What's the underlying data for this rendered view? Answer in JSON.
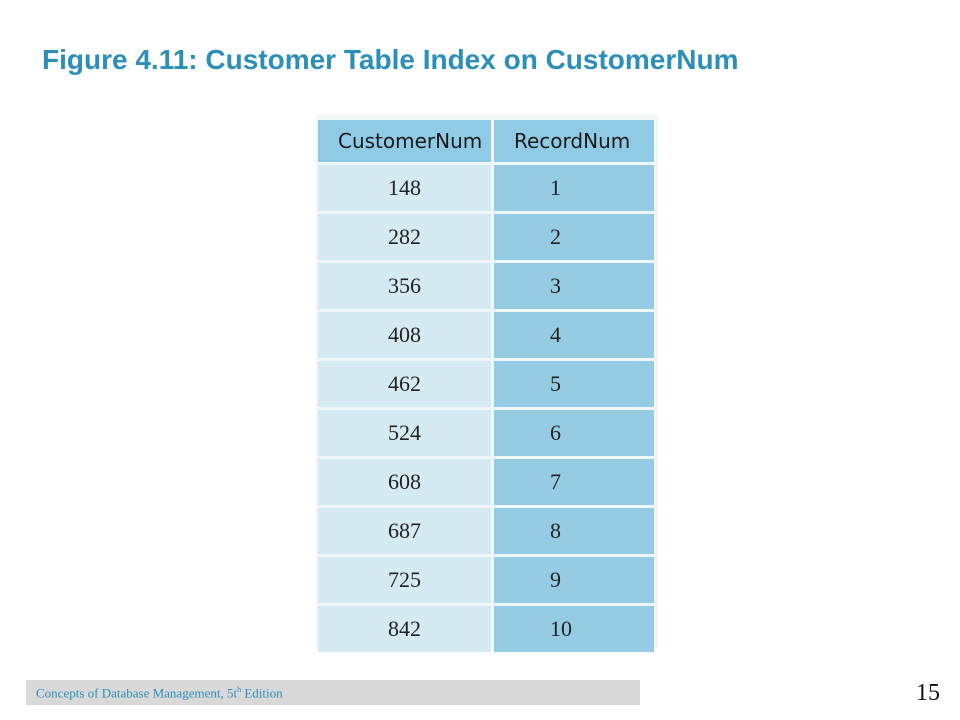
{
  "slide": {
    "title": "Figure 4.11: Customer Table Index on CustomerNum",
    "page_number": "15"
  },
  "table": {
    "headers": [
      "CustomerNum",
      "RecordNum"
    ],
    "rows": [
      [
        "148",
        "1"
      ],
      [
        "282",
        "2"
      ],
      [
        "356",
        "3"
      ],
      [
        "408",
        "4"
      ],
      [
        "462",
        "5"
      ],
      [
        "524",
        "6"
      ],
      [
        "608",
        "7"
      ],
      [
        "687",
        "8"
      ],
      [
        "725",
        "9"
      ],
      [
        "842",
        "10"
      ]
    ]
  },
  "footer": {
    "text_prefix": "Concepts of Database Management, 5t",
    "superscript": "h",
    "text_suffix": " Edition"
  },
  "colors": {
    "title": "#2C8FB7",
    "header_bg": "#8FCBE4",
    "col1_bg": "#D5EAF3",
    "col2_bg": "#96CCE3",
    "footer_bar": "#D9D9D9"
  }
}
